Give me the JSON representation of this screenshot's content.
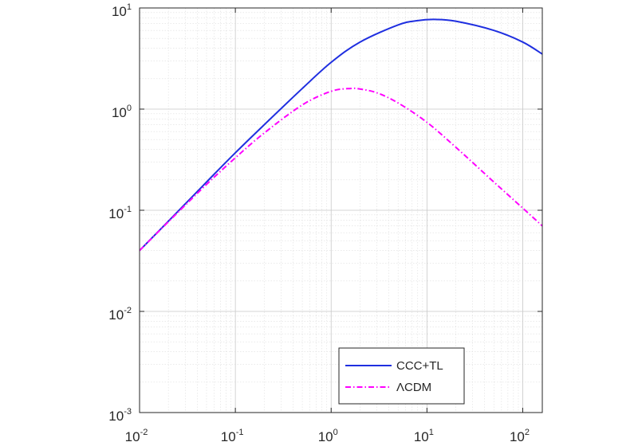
{
  "chart_data": {
    "type": "line",
    "title": "",
    "xlabel": "",
    "ylabel": "",
    "xscale": "log",
    "yscale": "log",
    "xlim": [
      0.01,
      160
    ],
    "ylim": [
      0.001,
      10
    ],
    "grid": true,
    "minor_grid": true,
    "legend_position": "bottom-right",
    "x_ticks": [
      {
        "base": "10",
        "exp": "-2",
        "value": 0.01
      },
      {
        "base": "10",
        "exp": "-1",
        "value": 0.1
      },
      {
        "base": "10",
        "exp": "0",
        "value": 1
      },
      {
        "base": "10",
        "exp": "1",
        "value": 10
      },
      {
        "base": "10",
        "exp": "2",
        "value": 100
      }
    ],
    "y_ticks": [
      {
        "base": "10",
        "exp": "-3",
        "value": 0.001
      },
      {
        "base": "10",
        "exp": "-2",
        "value": 0.01
      },
      {
        "base": "10",
        "exp": "-1",
        "value": 0.1
      },
      {
        "base": "10",
        "exp": "0",
        "value": 1
      },
      {
        "base": "10",
        "exp": "1",
        "value": 10
      }
    ],
    "series": [
      {
        "name": "CCC+TL",
        "color": "#1f2fe0",
        "dash": "solid",
        "x": [
          0.01,
          0.02,
          0.05,
          0.1,
          0.2,
          0.5,
          1,
          2,
          5,
          8,
          12,
          20,
          50,
          100,
          160
        ],
        "y": [
          0.04,
          0.078,
          0.19,
          0.37,
          0.7,
          1.6,
          2.9,
          4.6,
          6.8,
          7.5,
          7.7,
          7.4,
          6.0,
          4.6,
          3.5
        ]
      },
      {
        "name": "ΛCDM",
        "color": "#ff00ff",
        "dash": "dashdot",
        "x": [
          0.01,
          0.02,
          0.05,
          0.1,
          0.2,
          0.5,
          1,
          1.6,
          2,
          3,
          5,
          10,
          20,
          50,
          100,
          160
        ],
        "y": [
          0.04,
          0.077,
          0.18,
          0.33,
          0.58,
          1.1,
          1.5,
          1.6,
          1.58,
          1.45,
          1.15,
          0.74,
          0.42,
          0.19,
          0.105,
          0.07
        ]
      }
    ]
  }
}
